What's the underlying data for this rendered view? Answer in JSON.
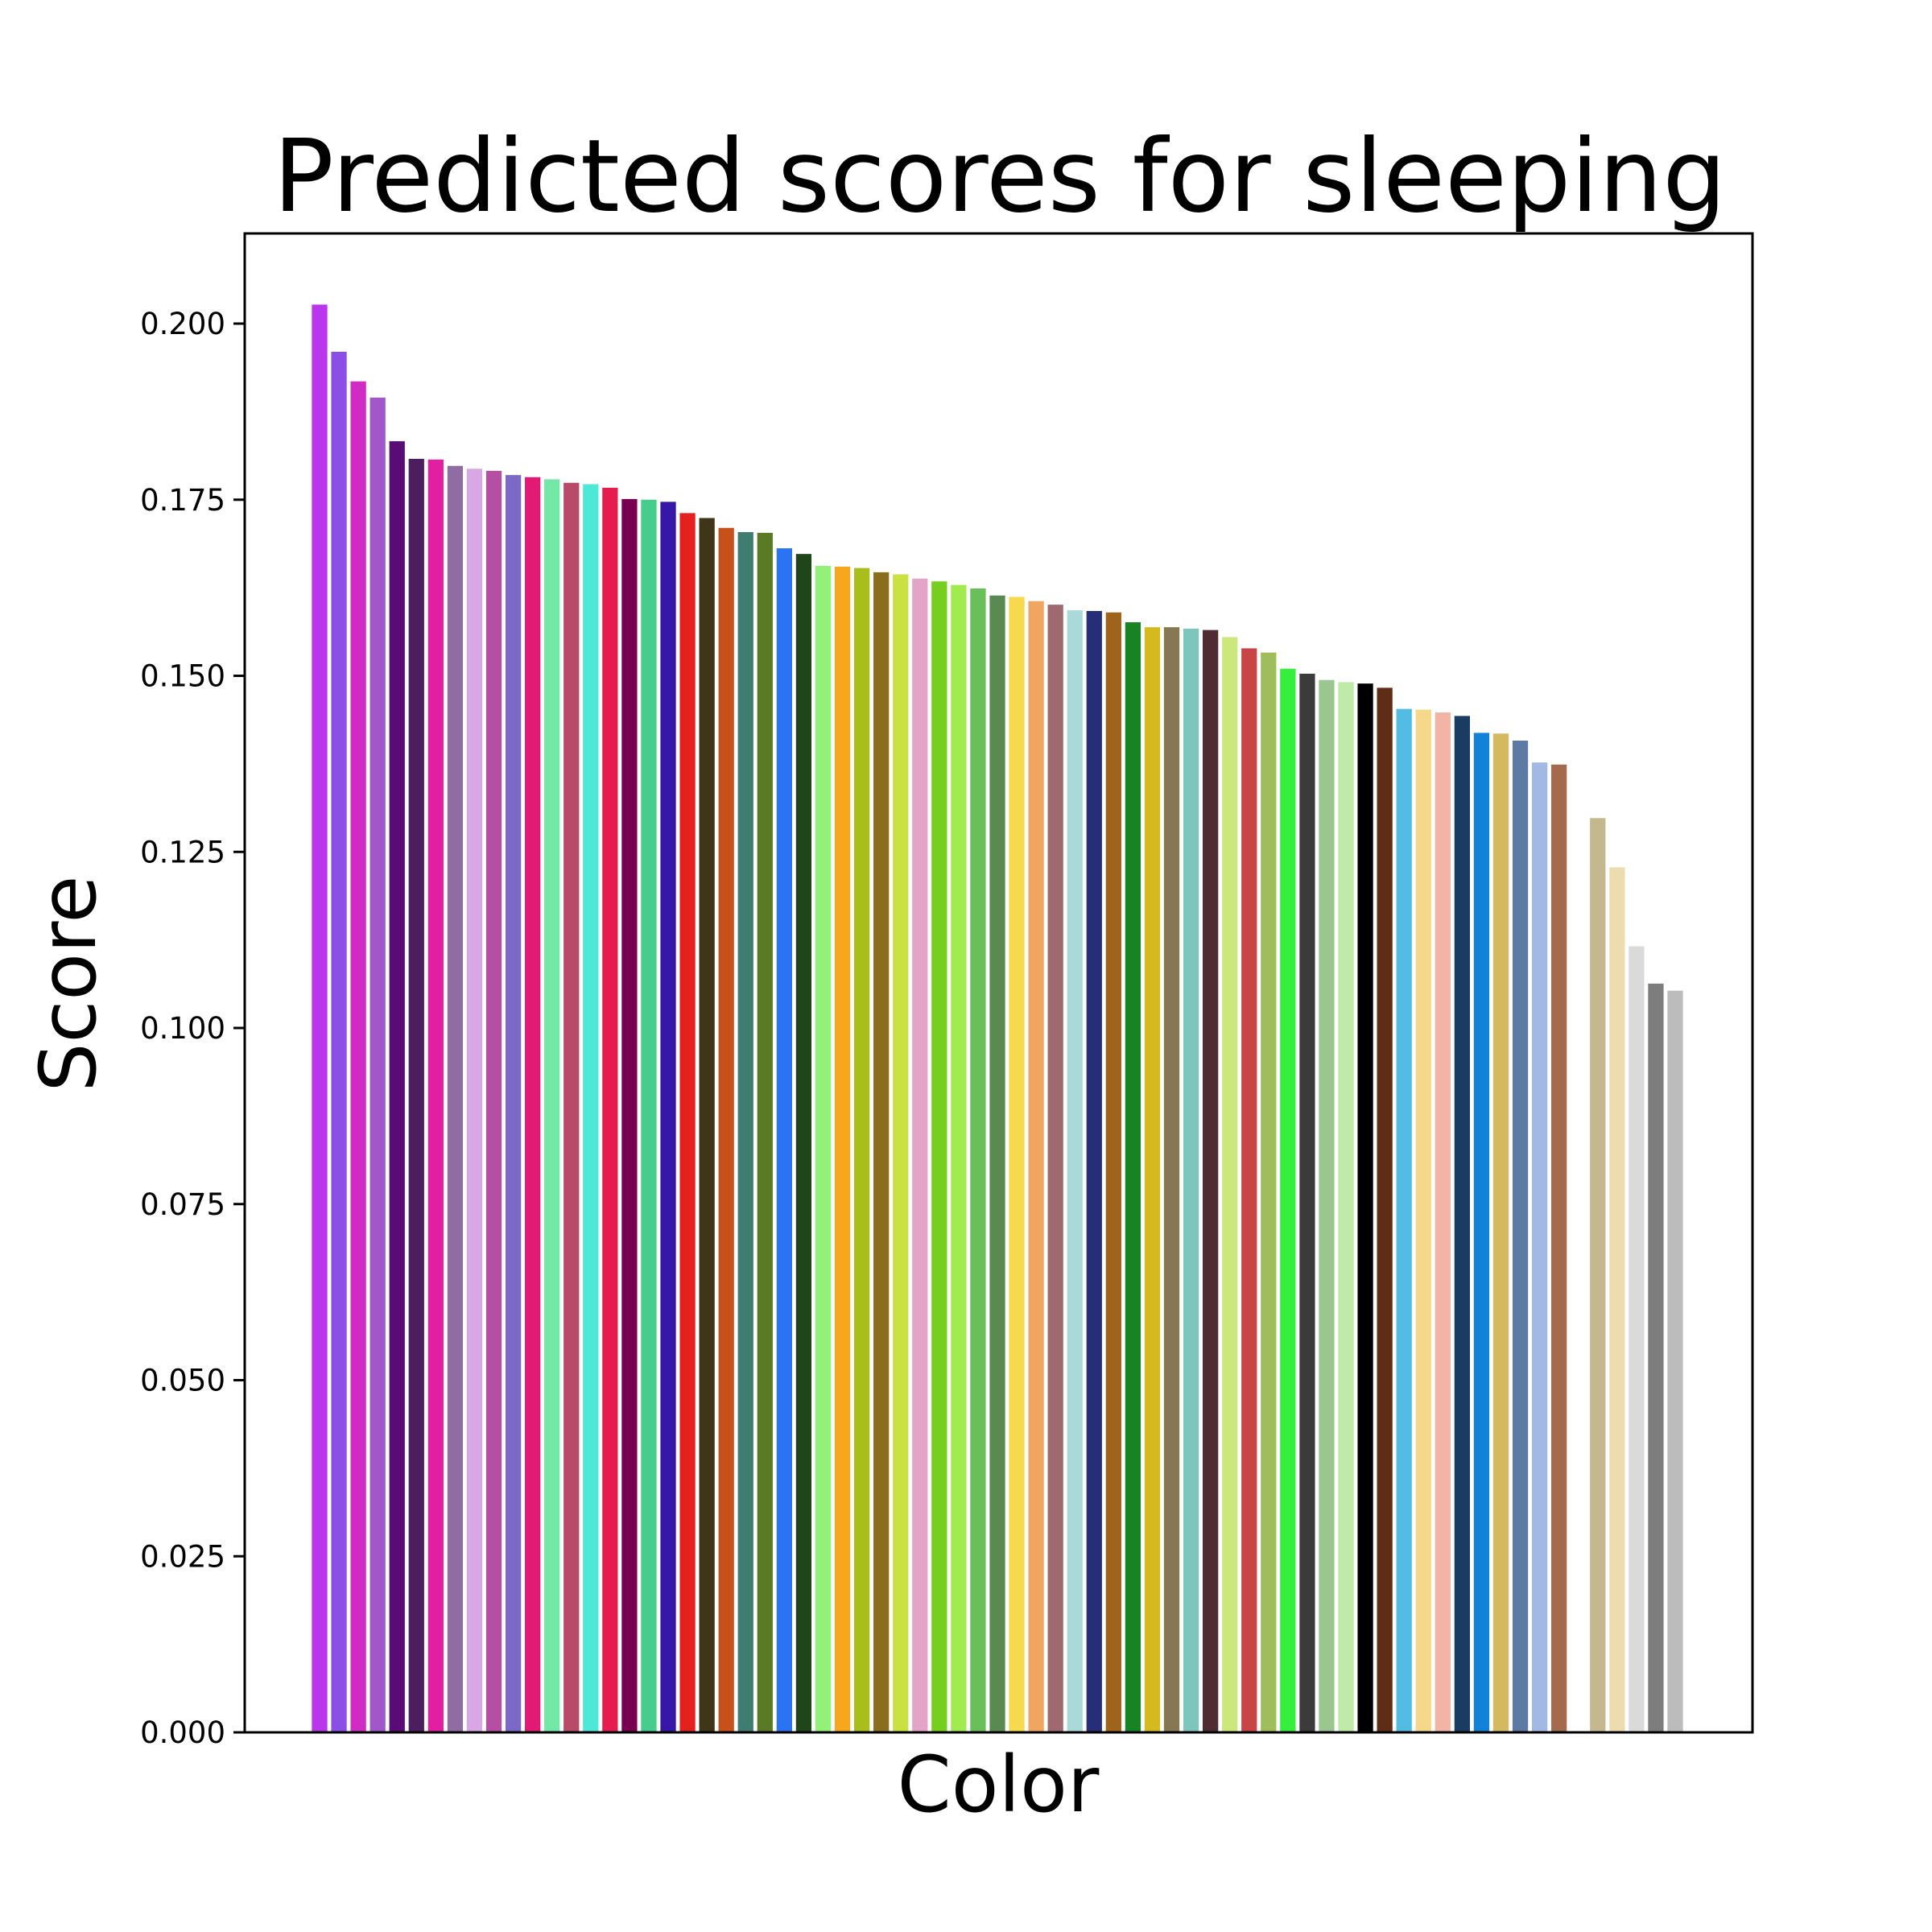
{
  "chart_data": {
    "type": "bar",
    "title": "Predicted scores for sleeping",
    "xlabel": "Color",
    "ylabel": "Score",
    "ylim": [
      0,
      0.2125
    ],
    "yticks": [
      "0.000",
      "0.025",
      "0.050",
      "0.075",
      "0.100",
      "0.125",
      "0.150",
      "0.175",
      "0.200"
    ],
    "xticks_shown": false,
    "grid": false,
    "legend": "none",
    "values": [
      0.2027,
      0.196,
      0.1918,
      0.1895,
      0.1833,
      0.1808,
      0.1807,
      0.1798,
      0.1794,
      0.1791,
      0.1785,
      0.1782,
      0.1779,
      0.1774,
      0.1772,
      0.1767,
      0.1751,
      0.175,
      0.1747,
      0.1731,
      0.1724,
      0.171,
      0.1704,
      0.1703,
      0.1681,
      0.1673,
      0.1656,
      0.1655,
      0.1653,
      0.1647,
      0.1644,
      0.1638,
      0.1634,
      0.1629,
      0.1624,
      0.1614,
      0.1612,
      0.1606,
      0.1601,
      0.1593,
      0.1592,
      0.159,
      0.1576,
      0.1569,
      0.1569,
      0.1567,
      0.1565,
      0.1555,
      0.1539,
      0.1533,
      0.151,
      0.1503,
      0.1494,
      0.1491,
      0.1489,
      0.1483,
      0.1453,
      0.1452,
      0.1448,
      0.1443,
      0.1419,
      0.1418,
      0.1408,
      0.1377,
      0.1374,
      null,
      0.1298,
      0.1228,
      0.1116,
      0.1063,
      0.1053
    ],
    "colors": [
      "#b936ec",
      "#8b4fe8",
      "#d02cc4",
      "#a057c7",
      "#5b0b76",
      "#4b1f5e",
      "#e11fa0",
      "#8f6da3",
      "#d8a8e4",
      "#b44fa2",
      "#7a69c7",
      "#e31a74",
      "#74e8a6",
      "#b84b6a",
      "#4ee8d8",
      "#e51c4d",
      "#770050",
      "#46cd8e",
      "#3617a7",
      "#e3221f",
      "#3f3518",
      "#c6511b",
      "#3e7d70",
      "#5b7a25",
      "#2a73f2",
      "#21451b",
      "#93f179",
      "#f8a61d",
      "#a9be1d",
      "#8b6d1e",
      "#c9e242",
      "#e3a4c8",
      "#76cf1e",
      "#a2eb4f",
      "#69c05a",
      "#5a8a51",
      "#f6d94c",
      "#f0a561",
      "#9e6a70",
      "#a9d9d8",
      "#262e77",
      "#a0631c",
      "#178323",
      "#d6b91e",
      "#867851",
      "#7ec5bd",
      "#4f2b33",
      "#cce77c",
      "#c94545",
      "#9fbd5b",
      "#36ee3c",
      "#3b3b3b",
      "#9cc690",
      "#bfeaa7",
      "#000000",
      "#5f2c16",
      "#54bce3",
      "#f6d88a",
      "#f2b4a4",
      "#1b3c62",
      "#1281d8",
      "#d4b960",
      "#5c7aa3",
      "#a1b9e4",
      "#a46a4d",
      "#ffffff",
      "#c5b88e",
      "#eddcb0",
      "#dadada",
      "#7d7d7d",
      "#bcbcbc"
    ]
  }
}
